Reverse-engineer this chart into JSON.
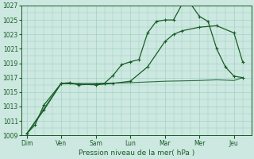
{
  "background_color": "#cce8e0",
  "grid_color": "#99ccbb",
  "line_color_dark": "#1a5c28",
  "line_color_med": "#2a7040",
  "xlabel": "Pression niveau de la mer( hPa )",
  "ylim": [
    1009,
    1027
  ],
  "yticks": [
    1009,
    1011,
    1013,
    1015,
    1017,
    1019,
    1021,
    1023,
    1025,
    1027
  ],
  "x_labels": [
    "Dim",
    "Ven",
    "Sam",
    "Lun",
    "Mar",
    "Mer",
    "Jeu"
  ],
  "x_positions": [
    0,
    1,
    2,
    3,
    4,
    5,
    6
  ],
  "series1_x": [
    0,
    0.25,
    0.5,
    1.0,
    1.25,
    1.5,
    2.0,
    2.25,
    2.5,
    2.75,
    3.0,
    3.25,
    3.5,
    3.75,
    4.0,
    4.25,
    4.5,
    4.75,
    5.0,
    5.25,
    5.5,
    5.75,
    6.0,
    6.25
  ],
  "series1_y": [
    1009.2,
    1010.5,
    1013.2,
    1016.2,
    1016.3,
    1016.0,
    1016.1,
    1016.2,
    1017.3,
    1018.8,
    1019.2,
    1019.5,
    1023.2,
    1024.8,
    1025.0,
    1025.0,
    1027.2,
    1027.2,
    1025.5,
    1024.8,
    1021.0,
    1018.5,
    1017.2,
    1017.0
  ],
  "series2_x": [
    0,
    0.5,
    1.0,
    1.5,
    2.0,
    2.5,
    3.0,
    3.5,
    4.0,
    4.25,
    4.5,
    5.0,
    5.5,
    6.0,
    6.25
  ],
  "series2_y": [
    1009.2,
    1012.5,
    1016.2,
    1016.1,
    1016.0,
    1016.2,
    1016.5,
    1018.5,
    1022.0,
    1023.0,
    1023.5,
    1024.0,
    1024.2,
    1023.2,
    1019.2
  ],
  "series3_x": [
    0,
    1.0,
    2.0,
    3.0,
    4.0,
    5.0,
    5.5,
    6.0,
    6.25
  ],
  "series3_y": [
    1009.2,
    1016.2,
    1016.2,
    1016.3,
    1016.5,
    1016.6,
    1016.7,
    1016.6,
    1017.0
  ]
}
